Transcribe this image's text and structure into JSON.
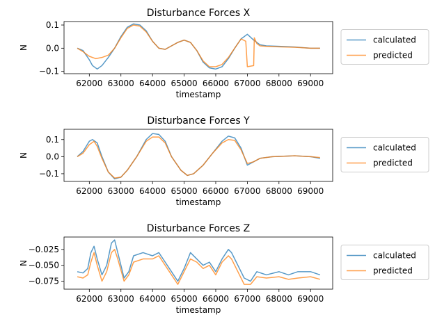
{
  "chart_data": [
    {
      "type": "line",
      "title": "Disturbance Forces X",
      "xlabel": "timestamp",
      "ylabel": "N",
      "xlim": [
        61200,
        69700
      ],
      "ylim": [
        -0.11,
        0.115
      ],
      "xticks": [
        62000,
        63000,
        64000,
        65000,
        66000,
        67000,
        68000,
        69000
      ],
      "yticks": [
        0.1,
        0.0,
        -0.1
      ],
      "ytick_labels": [
        "0.1",
        "0.0",
        "−0.1"
      ],
      "legend_position": "right-outside",
      "series": [
        {
          "name": "calculated",
          "color": "#1f77b4",
          "points": [
            [
              61620,
              0.0
            ],
            [
              61800,
              -0.01
            ],
            [
              62000,
              -0.05
            ],
            [
              62100,
              -0.075
            ],
            [
              62250,
              -0.09
            ],
            [
              62400,
              -0.075
            ],
            [
              62600,
              -0.04
            ],
            [
              62800,
              0.0
            ],
            [
              63000,
              0.05
            ],
            [
              63200,
              0.09
            ],
            [
              63400,
              0.105
            ],
            [
              63600,
              0.1
            ],
            [
              63800,
              0.075
            ],
            [
              64000,
              0.03
            ],
            [
              64200,
              0.0
            ],
            [
              64400,
              -0.005
            ],
            [
              64600,
              0.01
            ],
            [
              64800,
              0.025
            ],
            [
              65000,
              0.035
            ],
            [
              65200,
              0.025
            ],
            [
              65400,
              -0.01
            ],
            [
              65600,
              -0.06
            ],
            [
              65800,
              -0.085
            ],
            [
              66000,
              -0.09
            ],
            [
              66200,
              -0.08
            ],
            [
              66400,
              -0.045
            ],
            [
              66600,
              0.0
            ],
            [
              66800,
              0.04
            ],
            [
              67000,
              0.06
            ],
            [
              67200,
              0.035
            ],
            [
              67400,
              0.015
            ],
            [
              67600,
              0.01
            ],
            [
              68000,
              0.008
            ],
            [
              68500,
              0.005
            ],
            [
              69000,
              0.0
            ],
            [
              69300,
              0.0
            ]
          ]
        },
        {
          "name": "predicted",
          "color": "#ff7f0e",
          "points": [
            [
              61620,
              0.0
            ],
            [
              61800,
              -0.015
            ],
            [
              62000,
              -0.035
            ],
            [
              62200,
              -0.045
            ],
            [
              62400,
              -0.04
            ],
            [
              62600,
              -0.03
            ],
            [
              62800,
              0.0
            ],
            [
              63000,
              0.045
            ],
            [
              63200,
              0.085
            ],
            [
              63400,
              0.1
            ],
            [
              63600,
              0.095
            ],
            [
              63800,
              0.07
            ],
            [
              64000,
              0.03
            ],
            [
              64200,
              0.0
            ],
            [
              64400,
              -0.005
            ],
            [
              64600,
              0.01
            ],
            [
              64800,
              0.025
            ],
            [
              65000,
              0.035
            ],
            [
              65200,
              0.025
            ],
            [
              65400,
              -0.01
            ],
            [
              65600,
              -0.055
            ],
            [
              65800,
              -0.08
            ],
            [
              66000,
              -0.08
            ],
            [
              66200,
              -0.07
            ],
            [
              66400,
              -0.04
            ],
            [
              66600,
              0.0
            ],
            [
              66800,
              0.04
            ],
            [
              66950,
              0.03
            ],
            [
              67000,
              -0.08
            ],
            [
              67200,
              -0.075
            ],
            [
              67220,
              0.045
            ],
            [
              67300,
              0.02
            ],
            [
              67400,
              0.01
            ],
            [
              67600,
              0.008
            ],
            [
              68000,
              0.006
            ],
            [
              68500,
              0.004
            ],
            [
              69000,
              0.0
            ],
            [
              69300,
              0.0
            ]
          ]
        }
      ]
    },
    {
      "type": "line",
      "title": "Disturbance Forces Y",
      "xlabel": "timestamp",
      "ylabel": "N",
      "xlim": [
        61200,
        69700
      ],
      "ylim": [
        -0.145,
        0.16
      ],
      "xticks": [
        62000,
        63000,
        64000,
        65000,
        66000,
        67000,
        68000,
        69000
      ],
      "yticks": [
        0.1,
        0.0,
        -0.1
      ],
      "ytick_labels": [
        "0.1",
        "0.0",
        "−0.1"
      ],
      "legend_position": "right-outside",
      "series": [
        {
          "name": "calculated",
          "color": "#1f77b4",
          "points": [
            [
              61620,
              0.0
            ],
            [
              61800,
              0.03
            ],
            [
              62000,
              0.09
            ],
            [
              62100,
              0.1
            ],
            [
              62250,
              0.08
            ],
            [
              62400,
              0.0
            ],
            [
              62600,
              -0.09
            ],
            [
              62800,
              -0.13
            ],
            [
              63000,
              -0.12
            ],
            [
              63200,
              -0.08
            ],
            [
              63500,
              0.0
            ],
            [
              63800,
              0.1
            ],
            [
              64000,
              0.135
            ],
            [
              64200,
              0.13
            ],
            [
              64400,
              0.09
            ],
            [
              64600,
              0.0
            ],
            [
              64900,
              -0.08
            ],
            [
              65100,
              -0.11
            ],
            [
              65300,
              -0.1
            ],
            [
              65600,
              -0.05
            ],
            [
              65900,
              0.02
            ],
            [
              66200,
              0.09
            ],
            [
              66400,
              0.12
            ],
            [
              66600,
              0.11
            ],
            [
              66800,
              0.05
            ],
            [
              67000,
              -0.05
            ],
            [
              67200,
              -0.03
            ],
            [
              67400,
              -0.01
            ],
            [
              67800,
              0.0
            ],
            [
              68500,
              0.005
            ],
            [
              69000,
              0.0
            ],
            [
              69300,
              -0.01
            ]
          ]
        },
        {
          "name": "predicted",
          "color": "#ff7f0e",
          "points": [
            [
              61620,
              0.0
            ],
            [
              61800,
              0.02
            ],
            [
              62000,
              0.07
            ],
            [
              62150,
              0.09
            ],
            [
              62250,
              0.06
            ],
            [
              62400,
              -0.01
            ],
            [
              62600,
              -0.09
            ],
            [
              62800,
              -0.125
            ],
            [
              63000,
              -0.12
            ],
            [
              63200,
              -0.08
            ],
            [
              63500,
              0.0
            ],
            [
              63800,
              0.09
            ],
            [
              64000,
              0.115
            ],
            [
              64200,
              0.115
            ],
            [
              64400,
              0.08
            ],
            [
              64600,
              0.0
            ],
            [
              64900,
              -0.08
            ],
            [
              65100,
              -0.11
            ],
            [
              65300,
              -0.1
            ],
            [
              65600,
              -0.05
            ],
            [
              65900,
              0.02
            ],
            [
              66200,
              0.08
            ],
            [
              66400,
              0.1
            ],
            [
              66600,
              0.095
            ],
            [
              66800,
              0.04
            ],
            [
              67000,
              -0.04
            ],
            [
              67200,
              -0.03
            ],
            [
              67400,
              -0.01
            ],
            [
              67800,
              0.0
            ],
            [
              68500,
              0.005
            ],
            [
              69000,
              0.0
            ],
            [
              69300,
              -0.005
            ]
          ]
        }
      ]
    },
    {
      "type": "line",
      "title": "Disturbance Forces Z",
      "xlabel": "timestamp",
      "ylabel": "N",
      "xlim": [
        61200,
        69700
      ],
      "ylim": [
        -0.0875,
        -0.0055
      ],
      "xticks": [
        62000,
        63000,
        64000,
        65000,
        66000,
        67000,
        68000,
        69000
      ],
      "yticks": [
        -0.025,
        -0.05,
        -0.075
      ],
      "ytick_labels": [
        "−0.025",
        "−0.050",
        "−0.075"
      ],
      "legend_position": "right-outside",
      "series": [
        {
          "name": "calculated",
          "color": "#1f77b4",
          "points": [
            [
              61620,
              -0.06
            ],
            [
              61800,
              -0.062
            ],
            [
              61950,
              -0.055
            ],
            [
              62050,
              -0.03
            ],
            [
              62150,
              -0.02
            ],
            [
              62250,
              -0.04
            ],
            [
              62400,
              -0.065
            ],
            [
              62550,
              -0.05
            ],
            [
              62700,
              -0.015
            ],
            [
              62800,
              -0.01
            ],
            [
              62900,
              -0.03
            ],
            [
              63100,
              -0.07
            ],
            [
              63250,
              -0.06
            ],
            [
              63400,
              -0.035
            ],
            [
              63700,
              -0.03
            ],
            [
              64000,
              -0.035
            ],
            [
              64200,
              -0.03
            ],
            [
              64400,
              -0.045
            ],
            [
              64600,
              -0.06
            ],
            [
              64800,
              -0.075
            ],
            [
              65000,
              -0.055
            ],
            [
              65200,
              -0.03
            ],
            [
              65400,
              -0.04
            ],
            [
              65600,
              -0.05
            ],
            [
              65800,
              -0.045
            ],
            [
              66000,
              -0.06
            ],
            [
              66200,
              -0.04
            ],
            [
              66400,
              -0.025
            ],
            [
              66500,
              -0.03
            ],
            [
              66700,
              -0.05
            ],
            [
              66900,
              -0.07
            ],
            [
              67100,
              -0.075
            ],
            [
              67300,
              -0.06
            ],
            [
              67600,
              -0.065
            ],
            [
              68000,
              -0.06
            ],
            [
              68300,
              -0.065
            ],
            [
              68600,
              -0.06
            ],
            [
              69000,
              -0.06
            ],
            [
              69300,
              -0.065
            ]
          ]
        },
        {
          "name": "predicted",
          "color": "#ff7f0e",
          "points": [
            [
              61620,
              -0.068
            ],
            [
              61800,
              -0.07
            ],
            [
              61950,
              -0.065
            ],
            [
              62050,
              -0.045
            ],
            [
              62150,
              -0.03
            ],
            [
              62250,
              -0.05
            ],
            [
              62400,
              -0.075
            ],
            [
              62550,
              -0.06
            ],
            [
              62700,
              -0.03
            ],
            [
              62800,
              -0.025
            ],
            [
              62900,
              -0.04
            ],
            [
              63100,
              -0.075
            ],
            [
              63250,
              -0.065
            ],
            [
              63400,
              -0.045
            ],
            [
              63700,
              -0.04
            ],
            [
              64000,
              -0.04
            ],
            [
              64200,
              -0.035
            ],
            [
              64400,
              -0.05
            ],
            [
              64600,
              -0.065
            ],
            [
              64800,
              -0.08
            ],
            [
              65000,
              -0.06
            ],
            [
              65200,
              -0.04
            ],
            [
              65400,
              -0.045
            ],
            [
              65600,
              -0.055
            ],
            [
              65800,
              -0.05
            ],
            [
              66000,
              -0.065
            ],
            [
              66200,
              -0.045
            ],
            [
              66400,
              -0.035
            ],
            [
              66500,
              -0.04
            ],
            [
              66700,
              -0.06
            ],
            [
              66900,
              -0.08
            ],
            [
              67100,
              -0.08
            ],
            [
              67300,
              -0.068
            ],
            [
              67600,
              -0.07
            ],
            [
              68000,
              -0.068
            ],
            [
              68300,
              -0.072
            ],
            [
              68600,
              -0.07
            ],
            [
              69000,
              -0.068
            ],
            [
              69300,
              -0.072
            ]
          ]
        }
      ]
    }
  ]
}
